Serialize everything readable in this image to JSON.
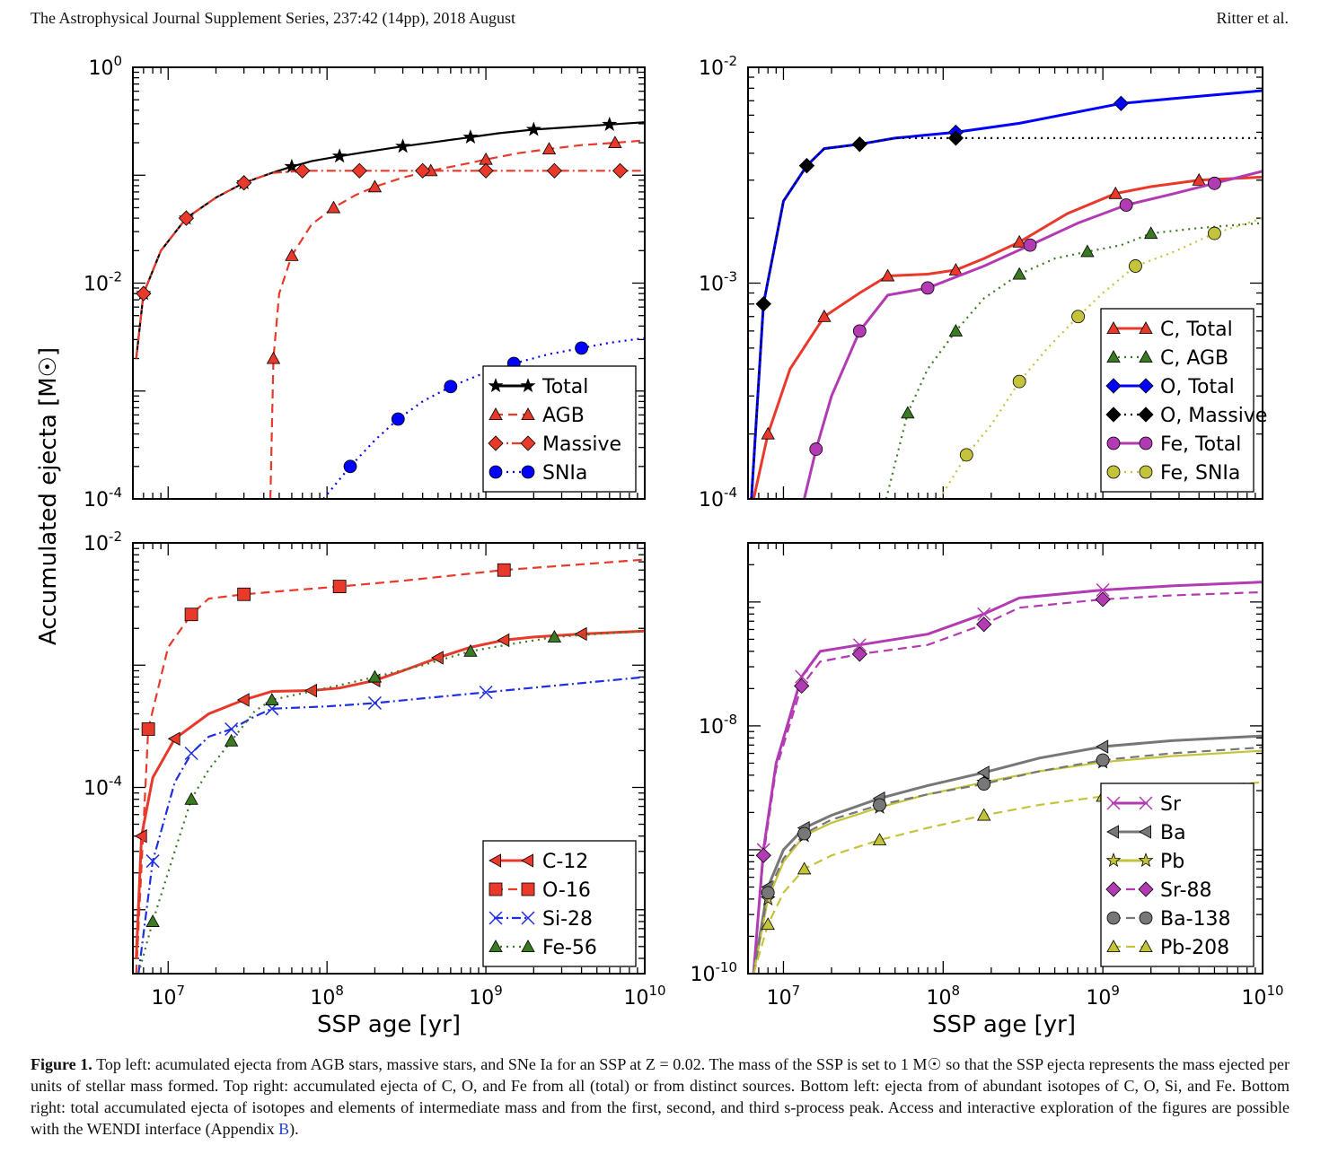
{
  "header": {
    "journal": "The Astrophysical Journal Supplement Series, 237:42 (14pp), 2018 August",
    "authors": "Ritter et al."
  },
  "axes_text": {
    "ylabel": "Accumulated ejecta [M☉]",
    "xlabel": "SSP age [yr]"
  },
  "caption": {
    "label": "Figure 1.",
    "text": "Top left: acumulated ejecta from AGB stars, massive stars, and SNe Ia for an SSP at Z = 0.02. The mass of the SSP is set to 1 M☉ so that the SSP ejecta represents the mass ejected per units of stellar mass formed. Top right: accumulated ejecta of C, O, and Fe from all (total) or from distinct sources. Bottom left: ejecta from of abundant isotopes of C, O, Si, and Fe. Bottom right: total accumulated ejecta of isotopes and elements of intermediate mass and from the first, second, and third s-process peak. Access and interactive exploration of the figures are possible with the WENDI interface (Appendix ",
    "link": "B",
    "end": ")."
  },
  "chart_data": [
    {
      "type": "line",
      "panel": "top-left",
      "xlabel": "",
      "ylabel": "Accumulated ejecta [M☉]",
      "xlim": [
        6000000,
        10000000000
      ],
      "ylim": [
        0.0001,
        1
      ],
      "log_x": true,
      "log_y": true,
      "y_ticks": [
        "10^0",
        "10^-2",
        "10^-4"
      ],
      "legend_position": "lower-right",
      "series": [
        {
          "name": "Total",
          "color": "#000000",
          "dash": "solid",
          "marker": "star",
          "x": [
            6300000,
            7000000,
            9000000,
            13000000,
            20000000,
            30000000,
            45000000,
            60000000,
            80000000,
            120000000,
            180000000,
            300000000,
            500000000,
            800000000,
            1200000000,
            2000000000,
            3500000000,
            6000000000,
            10000000000
          ],
          "y": [
            0.002,
            0.008,
            0.02,
            0.04,
            0.062,
            0.085,
            0.105,
            0.12,
            0.135,
            0.15,
            0.165,
            0.185,
            0.205,
            0.225,
            0.245,
            0.265,
            0.28,
            0.295,
            0.31
          ]
        },
        {
          "name": "AGB",
          "color": "#e8392b",
          "dash": "dashed",
          "marker": "triangle",
          "x": [
            44000000,
            46000000,
            50000000,
            60000000,
            80000000,
            110000000,
            150000000,
            200000000,
            300000000,
            450000000,
            700000000,
            1000000000,
            1600000000,
            2500000000,
            4000000000,
            6500000000,
            10000000000
          ],
          "y": [
            0.0001,
            0.002,
            0.008,
            0.018,
            0.035,
            0.05,
            0.065,
            0.078,
            0.095,
            0.11,
            0.125,
            0.14,
            0.16,
            0.175,
            0.19,
            0.2,
            0.21
          ]
        },
        {
          "name": "Massive",
          "color": "#e8392b",
          "dash": "dashdot",
          "marker": "diamond",
          "x": [
            6300000,
            7000000,
            9000000,
            13000000,
            20000000,
            30000000,
            45000000,
            70000000,
            110000000,
            160000000,
            250000000,
            400000000,
            650000000,
            1000000000,
            1700000000,
            2700000000,
            4500000000,
            7000000000,
            10000000000
          ],
          "y": [
            0.002,
            0.008,
            0.02,
            0.04,
            0.062,
            0.085,
            0.105,
            0.11,
            0.11,
            0.11,
            0.11,
            0.11,
            0.11,
            0.11,
            0.11,
            0.11,
            0.11,
            0.11,
            0.11
          ]
        },
        {
          "name": "SNIa",
          "color": "#0000ff",
          "dash": "dotted",
          "marker": "circle",
          "x": [
            95000000,
            140000000,
            200000000,
            280000000,
            400000000,
            600000000,
            900000000,
            1500000000,
            2500000000,
            4000000000,
            6000000000,
            10000000000
          ],
          "y": [
            0.0001,
            0.0002,
            0.00035,
            0.00055,
            0.0008,
            0.0011,
            0.0014,
            0.0018,
            0.0022,
            0.0025,
            0.0028,
            0.0031
          ]
        }
      ]
    },
    {
      "type": "line",
      "panel": "top-right",
      "xlabel": "",
      "ylabel": "",
      "xlim": [
        6000000,
        10000000000
      ],
      "ylim": [
        0.0001,
        0.01
      ],
      "log_x": true,
      "log_y": true,
      "y_ticks": [
        "10^-2",
        "10^-3",
        "10^-4"
      ],
      "legend_position": "lower-right",
      "series": [
        {
          "name": "C, Total",
          "color": "#e8392b",
          "dash": "solid",
          "marker": "triangle",
          "x": [
            6500000,
            8000000,
            11000000,
            18000000,
            30000000,
            45000000,
            80000000,
            120000000,
            180000000,
            300000000,
            600000000,
            1200000000,
            2000000000,
            4000000000,
            10000000000
          ],
          "y": [
            0.0001,
            0.0002,
            0.0004,
            0.0007,
            0.0009,
            0.00108,
            0.0011,
            0.00115,
            0.0013,
            0.00155,
            0.0021,
            0.0026,
            0.0028,
            0.003,
            0.0031
          ]
        },
        {
          "name": "C, AGB",
          "color": "#3a7a22",
          "dash": "dotted",
          "marker": "triangle",
          "x": [
            44000000,
            60000000,
            80000000,
            120000000,
            180000000,
            300000000,
            500000000,
            800000000,
            1300000000,
            2000000000,
            4000000000,
            10000000000
          ],
          "y": [
            0.0001,
            0.00025,
            0.0004,
            0.0006,
            0.00085,
            0.0011,
            0.0013,
            0.0014,
            0.0015,
            0.0017,
            0.0018,
            0.0019
          ]
        },
        {
          "name": "O, Total",
          "color": "#0000ff",
          "dash": "solid",
          "marker": "diamond",
          "x": [
            6300000,
            7500000,
            10000000,
            14000000,
            18000000,
            30000000,
            50000000,
            120000000,
            300000000,
            1300000000,
            3000000000,
            10000000000
          ],
          "y": [
            0.0001,
            0.0008,
            0.0024,
            0.0035,
            0.0042,
            0.0044,
            0.0047,
            0.005,
            0.0055,
            0.0068,
            0.0072,
            0.0078
          ]
        },
        {
          "name": "O, Massive",
          "color": "#000000",
          "dash": "dotted",
          "marker": "diamond",
          "x": [
            6300000,
            7500000,
            10000000,
            14000000,
            18000000,
            30000000,
            50000000,
            120000000,
            1300000000,
            10000000000
          ],
          "y": [
            0.0001,
            0.0008,
            0.0024,
            0.0035,
            0.0042,
            0.0044,
            0.0047,
            0.0047,
            0.0047,
            0.0047
          ]
        },
        {
          "name": "Fe, Total",
          "color": "#b23ab2",
          "dash": "solid",
          "marker": "circle",
          "x": [
            13500000,
            16000000,
            20000000,
            30000000,
            45000000,
            80000000,
            180000000,
            350000000,
            700000000,
            1400000000,
            2800000000,
            5000000000,
            10000000000
          ],
          "y": [
            0.0001,
            0.00017,
            0.0003,
            0.0006,
            0.00088,
            0.00095,
            0.0012,
            0.0015,
            0.0019,
            0.0023,
            0.0026,
            0.0029,
            0.0033
          ]
        },
        {
          "name": "Fe, SNIa",
          "color": "#c4c43a",
          "dash": "dotted",
          "marker": "circle",
          "x": [
            95000000,
            140000000,
            200000000,
            300000000,
            450000000,
            700000000,
            1000000000,
            1600000000,
            2800000000,
            5000000000,
            10000000000
          ],
          "y": [
            0.0001,
            0.00016,
            0.00022,
            0.00035,
            0.0005,
            0.0007,
            0.0009,
            0.0012,
            0.0014,
            0.0017,
            0.002
          ]
        }
      ]
    },
    {
      "type": "line",
      "panel": "bottom-left",
      "xlabel": "SSP age [yr]",
      "ylabel": "",
      "xlim": [
        6000000,
        10000000000
      ],
      "ylim": [
        3e-06,
        0.01
      ],
      "log_x": true,
      "log_y": true,
      "x_ticks": [
        "10^7",
        "10^8",
        "10^9",
        "10^10"
      ],
      "y_ticks": [
        "10^-2",
        "10^-4"
      ],
      "legend_position": "lower-right",
      "series": [
        {
          "name": "C-12",
          "color": "#e8392b",
          "dash": "solid",
          "marker": "triangle-left",
          "x": [
            6300000,
            6800000,
            8000000,
            11000000,
            18000000,
            30000000,
            45000000,
            80000000,
            120000000,
            200000000,
            300000000,
            500000000,
            800000000,
            1300000000,
            2000000000,
            4000000000,
            10000000000
          ],
          "y": [
            4e-06,
            4e-05,
            0.00012,
            0.00025,
            0.0004,
            0.00052,
            0.00061,
            0.00062,
            0.00065,
            0.00075,
            0.0009,
            0.00115,
            0.0014,
            0.0016,
            0.0017,
            0.0018,
            0.0019
          ]
        },
        {
          "name": "O-16",
          "color": "#e8392b",
          "dash": "dashed",
          "marker": "square",
          "x": [
            6300000,
            7500000,
            10000000,
            14000000,
            18000000,
            30000000,
            60000000,
            120000000,
            300000000,
            1300000000,
            3000000000,
            10000000000
          ],
          "y": [
            3e-06,
            0.0003,
            0.0014,
            0.0026,
            0.0035,
            0.0038,
            0.0041,
            0.0044,
            0.0049,
            0.006,
            0.0065,
            0.0073
          ]
        },
        {
          "name": "Si-28",
          "color": "#1f2fe0",
          "dash": "dashdot",
          "marker": "x",
          "x": [
            6500000,
            8000000,
            11000000,
            14000000,
            18000000,
            25000000,
            35000000,
            45000000,
            100000000,
            200000000,
            500000000,
            1000000000,
            2700000000,
            10000000000
          ],
          "y": [
            3e-06,
            2.5e-05,
            0.00011,
            0.00019,
            0.00026,
            0.0003,
            0.00038,
            0.00044,
            0.00046,
            0.00049,
            0.00055,
            0.0006,
            0.00068,
            0.0008
          ]
        },
        {
          "name": "Fe-56",
          "color": "#3a7a22",
          "dash": "dotted",
          "marker": "triangle",
          "x": [
            6500000,
            8000000,
            11000000,
            14000000,
            18000000,
            25000000,
            35000000,
            45000000,
            100000000,
            200000000,
            400000000,
            800000000,
            1500000000,
            2700000000,
            5000000000,
            10000000000
          ],
          "y": [
            3e-06,
            8e-06,
            3e-05,
            8e-05,
            0.00014,
            0.00024,
            0.00042,
            0.00052,
            0.00065,
            0.0008,
            0.001,
            0.0013,
            0.0015,
            0.0017,
            0.0018,
            0.0019
          ]
        }
      ]
    },
    {
      "type": "line",
      "panel": "bottom-right",
      "xlabel": "SSP age [yr]",
      "ylabel": "",
      "xlim": [
        6000000,
        10000000000
      ],
      "ylim": [
        1e-10,
        3e-07
      ],
      "log_x": true,
      "log_y": true,
      "x_ticks": [
        "10^7",
        "10^8",
        "10^9",
        "10^10"
      ],
      "y_ticks": [
        "10^-8",
        "10^-10"
      ],
      "legend_position": "lower-right",
      "series": [
        {
          "name": "Sr",
          "color": "#b23ab2",
          "dash": "solid",
          "marker": "x",
          "x": [
            6500000,
            7500000,
            9000000,
            13000000,
            17000000,
            30000000,
            80000000,
            180000000,
            300000000,
            1000000000,
            2700000000,
            10000000000
          ],
          "y": [
            1e-10,
            1e-09,
            5e-09,
            2.5e-08,
            4e-08,
            4.5e-08,
            5.5e-08,
            8e-08,
            1.08e-07,
            1.25e-07,
            1.35e-07,
            1.45e-07
          ]
        },
        {
          "name": "Ba",
          "color": "#777777",
          "dash": "solid",
          "marker": "triangle-left",
          "x": [
            6500000,
            8000000,
            10000000,
            13500000,
            20000000,
            40000000,
            80000000,
            180000000,
            400000000,
            1000000000,
            2700000000,
            10000000000
          ],
          "y": [
            1e-10,
            5e-10,
            1e-09,
            1.5e-09,
            1.9e-09,
            2.6e-09,
            3.3e-09,
            4.2e-09,
            5.5e-09,
            6.8e-09,
            7.6e-09,
            8.3e-09
          ]
        },
        {
          "name": "Pb",
          "color": "#c4c43a",
          "dash": "solid",
          "marker": "star",
          "x": [
            6500000,
            8000000,
            10000000,
            13500000,
            20000000,
            40000000,
            80000000,
            180000000,
            400000000,
            1000000000,
            2700000000,
            10000000000
          ],
          "y": [
            1e-10,
            4e-10,
            8e-10,
            1.3e-09,
            1.65e-09,
            2.2e-09,
            2.8e-09,
            3.5e-09,
            4.3e-09,
            5.1e-09,
            5.7e-09,
            6.3e-09
          ]
        },
        {
          "name": "Sr-88",
          "color": "#b23ab2",
          "dash": "dashed",
          "marker": "diamond",
          "x": [
            6500000,
            7500000,
            9000000,
            13000000,
            17000000,
            30000000,
            80000000,
            180000000,
            300000000,
            1000000000,
            2700000000,
            10000000000
          ],
          "y": [
            1e-10,
            9e-10,
            4.5e-09,
            2.1e-08,
            3.3e-08,
            3.8e-08,
            4.5e-08,
            6.6e-08,
            9e-08,
            1.05e-07,
            1.13e-07,
            1.2e-07
          ]
        },
        {
          "name": "Ba-138",
          "color": "#777777",
          "dash": "dashed",
          "marker": "circle",
          "x": [
            6500000,
            8000000,
            10000000,
            13500000,
            20000000,
            40000000,
            80000000,
            180000000,
            400000000,
            1000000000,
            2700000000,
            10000000000
          ],
          "y": [
            1e-10,
            4.5e-10,
            8.5e-10,
            1.35e-09,
            1.75e-09,
            2.3e-09,
            2.8e-09,
            3.4e-09,
            4.3e-09,
            5.3e-09,
            6e-09,
            6.7e-09
          ]
        },
        {
          "name": "Pb-208",
          "color": "#c4c43a",
          "dash": "dashed",
          "marker": "triangle",
          "x": [
            6500000,
            8000000,
            10000000,
            13500000,
            20000000,
            40000000,
            80000000,
            180000000,
            400000000,
            1000000000,
            2700000000,
            10000000000
          ],
          "y": [
            1e-10,
            2.5e-10,
            4.5e-10,
            7e-10,
            9e-10,
            1.2e-09,
            1.5e-09,
            1.9e-09,
            2.3e-09,
            2.7e-09,
            3.1e-09,
            3.5e-09
          ]
        }
      ]
    }
  ]
}
